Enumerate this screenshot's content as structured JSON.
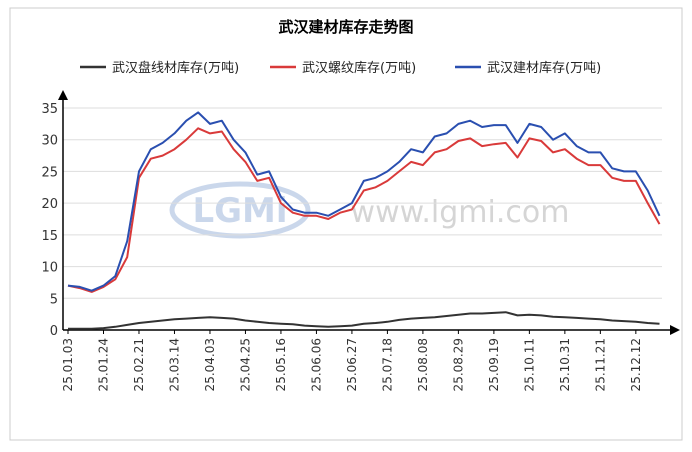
{
  "chart_data": {
    "type": "line",
    "title": "武汉建材库存走势图",
    "watermark_logo": "LGMi",
    "watermark_url": "www.lgmi.com",
    "categories": [
      "25.01.03",
      null,
      null,
      "25.01.24",
      null,
      null,
      "25.02.21",
      null,
      null,
      "25.03.14",
      null,
      null,
      "25.04.03",
      null,
      null,
      "25.04.25",
      null,
      null,
      "25.05.16",
      null,
      null,
      "25.06.06",
      null,
      null,
      "25.06.27",
      null,
      null,
      "25.07.18",
      null,
      null,
      "25.08.08",
      null,
      null,
      "25.08.29",
      null,
      null,
      "25.09.19",
      null,
      null,
      "25.10.11",
      null,
      null,
      "25.10.31",
      null,
      null,
      "25.11.21",
      null,
      null,
      "25.12.12",
      null,
      null
    ],
    "series": [
      {
        "name": "武汉盘线材库存(万吨)",
        "color": "#333333",
        "values": [
          0.2,
          0.2,
          0.2,
          0.3,
          0.5,
          0.8,
          1.1,
          1.3,
          1.5,
          1.7,
          1.8,
          1.9,
          2.0,
          1.9,
          1.8,
          1.5,
          1.3,
          1.1,
          1.0,
          0.9,
          0.7,
          0.6,
          0.5,
          0.6,
          0.7,
          1.0,
          1.1,
          1.3,
          1.6,
          1.8,
          1.9,
          2.0,
          2.2,
          2.4,
          2.6,
          2.6,
          2.7,
          2.8,
          2.3,
          2.4,
          2.3,
          2.1,
          2.0,
          1.9,
          1.8,
          1.7,
          1.5,
          1.4,
          1.3,
          1.1,
          1.0
        ]
      },
      {
        "name": "武汉螺纹库存(万吨)",
        "color": "#d93a3a",
        "values": [
          7,
          6.6,
          6,
          6.8,
          8,
          11.5,
          24,
          27,
          27.5,
          28.5,
          30,
          31.8,
          31,
          31.3,
          28.5,
          26.5,
          23.5,
          24,
          20,
          18.5,
          18,
          18,
          17.5,
          18.5,
          19,
          22,
          22.5,
          23.5,
          25,
          26.5,
          26,
          28,
          28.5,
          29.8,
          30.2,
          29,
          29.3,
          29.5,
          27.2,
          30.2,
          29.8,
          28,
          28.5,
          27,
          26,
          26,
          24,
          23.5,
          23.5,
          20,
          16.7
        ]
      },
      {
        "name": "武汉建材库存(万吨)",
        "color": "#2a4fb0",
        "values": [
          7,
          6.8,
          6.2,
          7,
          8.5,
          14,
          25,
          28.5,
          29.5,
          31,
          33,
          34.3,
          32.5,
          33,
          30,
          28,
          24.5,
          25,
          21,
          19,
          18.5,
          18.5,
          18,
          19,
          20,
          23.5,
          24,
          25,
          26.5,
          28.5,
          28,
          30.5,
          31,
          32.5,
          33,
          32,
          32.3,
          32.3,
          29.5,
          32.5,
          32,
          30,
          31,
          29,
          28,
          28,
          25.5,
          25,
          25,
          22,
          18
        ]
      }
    ],
    "ylim": [
      0,
      35
    ],
    "yticks": [
      0,
      5,
      10,
      15,
      20,
      25,
      30,
      35
    ],
    "grid": true
  }
}
